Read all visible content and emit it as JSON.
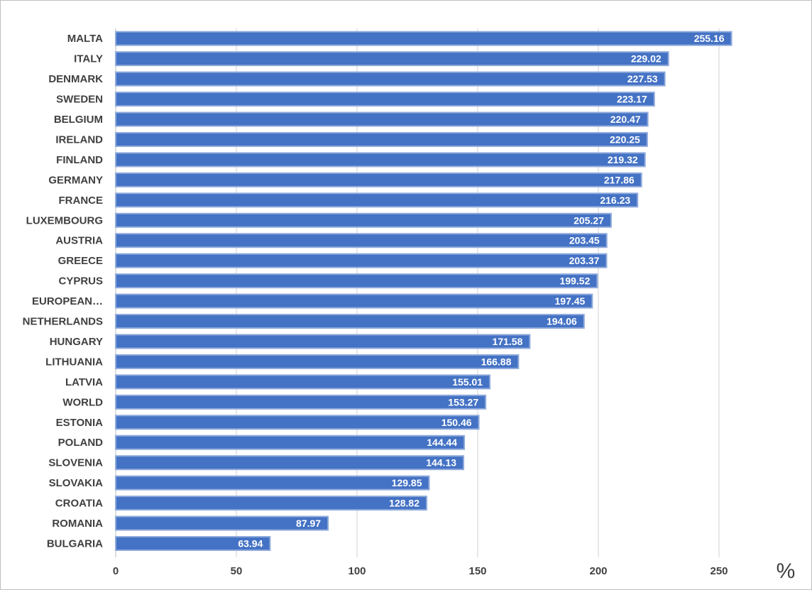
{
  "chart_data": {
    "type": "bar",
    "orientation": "horizontal",
    "categories": [
      "MALTA",
      "ITALY",
      "DENMARK",
      "SWEDEN",
      "BELGIUM",
      "IRELAND",
      "FINLAND",
      "GERMANY",
      "FRANCE",
      "LUXEMBOURG",
      "AUSTRIA",
      "GREECE",
      "CYPRUS",
      "EUROPEAN…",
      "NETHERLANDS",
      "HUNGARY",
      "LITHUANIA",
      "LATVIA",
      "WORLD",
      "ESTONIA",
      "POLAND",
      "SLOVENIA",
      "SLOVAKIA",
      "CROATIA",
      "ROMANIA",
      "BULGARIA"
    ],
    "values": [
      255.16,
      229.02,
      227.53,
      223.17,
      220.47,
      220.25,
      219.32,
      217.86,
      216.23,
      205.27,
      203.45,
      203.37,
      199.52,
      197.45,
      194.06,
      171.58,
      166.88,
      155.01,
      153.27,
      150.46,
      144.44,
      144.13,
      129.85,
      128.82,
      87.97,
      63.94
    ],
    "value_labels": [
      "255.16",
      "229.02",
      "227.53",
      "223.17",
      "220.47",
      "220.25",
      "219.32",
      "217.86",
      "216.23",
      "205.27",
      "203.45",
      "203.37",
      "199.52",
      "197.45",
      "194.06",
      "171.58",
      "166.88",
      "155.01",
      "153.27",
      "150.46",
      "144.44",
      "144.13",
      "129.85",
      "128.82",
      "87.97",
      "63.94"
    ],
    "x_ticks": [
      "0",
      "50",
      "100",
      "150",
      "200",
      "250"
    ],
    "xlim": [
      0,
      300
    ],
    "xlabel": "%",
    "grid": "vertical",
    "colors": {
      "bar": "#4472C4",
      "bar_border": "#8FAADC",
      "grid": "#d0d0d0"
    }
  }
}
